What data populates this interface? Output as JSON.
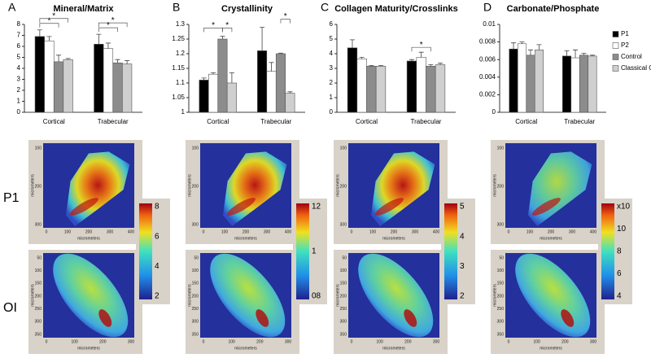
{
  "chart_data": [
    {
      "type": "bar",
      "panel": "A",
      "title": "Mineral/Matrix",
      "categories": [
        "Cortical",
        "Trabecular"
      ],
      "ylim": [
        0,
        8
      ],
      "yticks": [
        0,
        1,
        2,
        3,
        4,
        5,
        6,
        7,
        8
      ],
      "series": [
        {
          "color": "#000000",
          "values": [
            6.9,
            6.2
          ],
          "errors": [
            0.6,
            0.9
          ]
        },
        {
          "color": "#ffffff",
          "values": [
            6.5,
            5.8
          ],
          "errors": [
            0.4,
            0.5
          ]
        },
        {
          "color": "#8c8c8c",
          "values": [
            4.6,
            4.5
          ],
          "errors": [
            0.6,
            0.3
          ]
        },
        {
          "color": "#cfcfcf",
          "values": [
            4.8,
            4.4
          ],
          "errors": [
            0.1,
            0.3
          ]
        }
      ],
      "annotations": [
        "*",
        "*",
        "*",
        "*"
      ]
    },
    {
      "type": "bar",
      "panel": "B",
      "title": "Crystallinity",
      "categories": [
        "Cortical",
        "Trabecular"
      ],
      "ylim": [
        1,
        1.3
      ],
      "yticks": [
        1,
        1.05,
        1.1,
        1.15,
        1.2,
        1.25,
        1.3
      ],
      "series": [
        {
          "color": "#000000",
          "values": [
            1.11,
            1.21
          ],
          "errors": [
            0.007,
            0.08
          ]
        },
        {
          "color": "#ffffff",
          "values": [
            1.13,
            1.14
          ],
          "errors": [
            0.005,
            0.03
          ]
        },
        {
          "color": "#8c8c8c",
          "values": [
            1.25,
            1.2
          ],
          "errors": [
            0.01,
            0.002
          ]
        },
        {
          "color": "#cfcfcf",
          "values": [
            1.1,
            1.065
          ],
          "errors": [
            0.035,
            0.005
          ]
        }
      ],
      "annotations": [
        "*",
        "*",
        "*"
      ]
    },
    {
      "type": "bar",
      "panel": "C",
      "title": "Collagen Maturity/Crosslinks",
      "categories": [
        "Cortical",
        "Trabecular"
      ],
      "ylim": [
        0,
        6
      ],
      "yticks": [
        0,
        1,
        2,
        3,
        4,
        5,
        6
      ],
      "series": [
        {
          "color": "#000000",
          "values": [
            4.4,
            3.5
          ],
          "errors": [
            0.55,
            0.1
          ]
        },
        {
          "color": "#ffffff",
          "values": [
            3.65,
            3.75
          ],
          "errors": [
            0.1,
            0.35
          ]
        },
        {
          "color": "#8c8c8c",
          "values": [
            3.15,
            3.15
          ],
          "errors": [
            0.05,
            0.1
          ]
        },
        {
          "color": "#cfcfcf",
          "values": [
            3.15,
            3.25
          ],
          "errors": [
            0.05,
            0.1
          ]
        }
      ],
      "annotations": [
        "*"
      ]
    },
    {
      "type": "bar",
      "panel": "D",
      "title": "Carbonate/Phosphate",
      "categories": [
        "Cortical",
        "Trabecular"
      ],
      "ylim": [
        0,
        0.01
      ],
      "yticks": [
        0,
        0.002,
        0.004,
        0.006,
        0.008,
        0.01
      ],
      "legend": "right",
      "series": [
        {
          "name": "P1",
          "color": "#000000",
          "values": [
            0.0072,
            0.0064
          ],
          "errors": [
            0.0007,
            0.0006
          ]
        },
        {
          "name": "P2",
          "color": "#ffffff",
          "values": [
            0.0078,
            0.0062
          ],
          "errors": [
            0.0002,
            0.0009
          ]
        },
        {
          "name": "Control",
          "color": "#8c8c8c",
          "values": [
            0.0065,
            0.0065
          ],
          "errors": [
            0.0006,
            0.0002
          ]
        },
        {
          "name": "Classical OI",
          "color": "#cfcfcf",
          "values": [
            0.0071,
            0.0064
          ],
          "errors": [
            0.0006,
            0.0001
          ]
        }
      ]
    }
  ],
  "heatmaps": {
    "rows": [
      "P1",
      "OI"
    ],
    "axis_label": "micrometers",
    "p1_yticks": [
      "100",
      "200",
      "300"
    ],
    "p1_xticks": [
      "0",
      "100",
      "200",
      "300",
      "400"
    ],
    "oi_yticks": [
      "50",
      "100",
      "150",
      "200",
      "250",
      "300",
      "350"
    ],
    "oi_xticks": [
      "0",
      "100",
      "200",
      "300"
    ],
    "colorbars": [
      [
        "8",
        "6",
        "4",
        "2"
      ],
      [
        "12",
        "1",
        "08"
      ],
      [
        "5",
        "4",
        "3",
        "2"
      ],
      [
        "x10",
        "10",
        "8",
        "6",
        "4"
      ]
    ]
  }
}
